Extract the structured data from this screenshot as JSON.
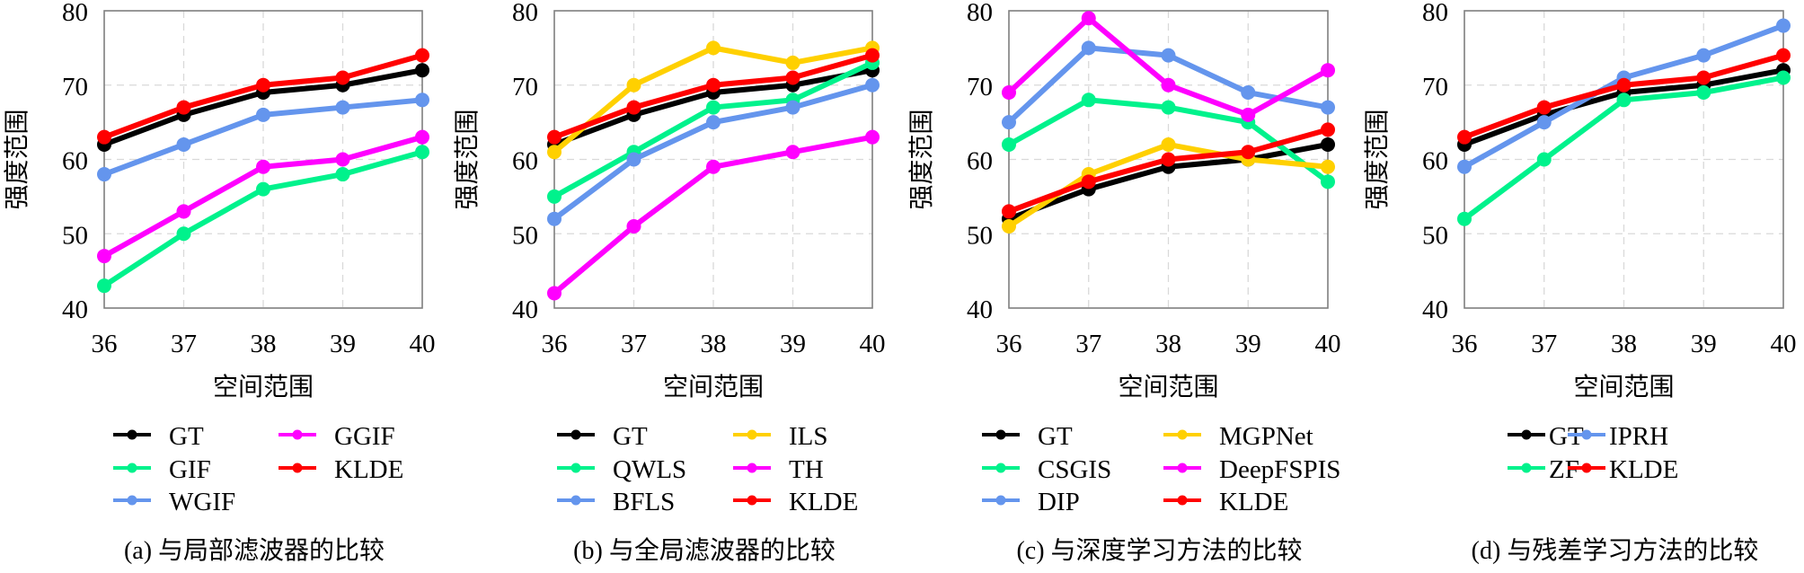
{
  "chart_data": [
    {
      "type": "line",
      "title": "",
      "caption": "(a) 与局部滤波器的比较",
      "xlabel": "空间范围",
      "ylabel": "强度范围",
      "x": [
        36,
        37,
        38,
        39,
        40
      ],
      "xticks": [
        "36",
        "37",
        "38",
        "39",
        "40"
      ],
      "yticks": [
        "40",
        "50",
        "60",
        "70",
        "80"
      ],
      "ylim": [
        40,
        80
      ],
      "xlim": [
        36,
        40
      ],
      "grid": true,
      "legend_placement": "below",
      "legend_columns": 2,
      "series": [
        {
          "name": "GT",
          "color": "#000000",
          "values": [
            62,
            66,
            69,
            70,
            72
          ]
        },
        {
          "name": "GIF",
          "color": "#00F28C",
          "values": [
            43,
            50,
            56,
            58,
            61
          ]
        },
        {
          "name": "WGIF",
          "color": "#6495ED",
          "values": [
            58,
            62,
            66,
            67,
            68
          ]
        },
        {
          "name": "GGIF",
          "color": "#FF00FF",
          "values": [
            47,
            53,
            59,
            60,
            63
          ]
        },
        {
          "name": "KLDE",
          "color": "#FF0000",
          "values": [
            63,
            67,
            70,
            71,
            74
          ]
        }
      ]
    },
    {
      "type": "line",
      "title": "",
      "caption": "(b) 与全局滤波器的比较",
      "xlabel": "空间范围",
      "ylabel": "强度范围",
      "x": [
        36,
        37,
        38,
        39,
        40
      ],
      "xticks": [
        "36",
        "37",
        "38",
        "39",
        "40"
      ],
      "yticks": [
        "40",
        "50",
        "60",
        "70",
        "80"
      ],
      "ylim": [
        40,
        80
      ],
      "xlim": [
        36,
        40
      ],
      "grid": true,
      "legend_placement": "below",
      "legend_columns": 2,
      "series": [
        {
          "name": "GT",
          "color": "#000000",
          "values": [
            62,
            66,
            69,
            70,
            72
          ]
        },
        {
          "name": "QWLS",
          "color": "#00F28C",
          "values": [
            55,
            61,
            67,
            68,
            73
          ]
        },
        {
          "name": "BFLS",
          "color": "#6495ED",
          "values": [
            52,
            60,
            65,
            67,
            70
          ]
        },
        {
          "name": "ILS",
          "color": "#FFD000",
          "values": [
            61,
            70,
            75,
            73,
            75
          ]
        },
        {
          "name": "TH",
          "color": "#FF00FF",
          "values": [
            42,
            51,
            59,
            61,
            63
          ]
        },
        {
          "name": "KLDE",
          "color": "#FF0000",
          "values": [
            63,
            67,
            70,
            71,
            74
          ]
        }
      ]
    },
    {
      "type": "line",
      "title": "",
      "caption": "(c) 与深度学习方法的比较",
      "xlabel": "空间范围",
      "ylabel": "强度范围",
      "x": [
        36,
        37,
        38,
        39,
        40
      ],
      "xticks": [
        "36",
        "37",
        "38",
        "39",
        "40"
      ],
      "yticks": [
        "40",
        "50",
        "60",
        "70",
        "80"
      ],
      "ylim": [
        40,
        80
      ],
      "xlim": [
        36,
        40
      ],
      "grid": true,
      "legend_placement": "below",
      "legend_columns": 2,
      "series": [
        {
          "name": "GT",
          "color": "#000000",
          "values": [
            52,
            56,
            59,
            60,
            62
          ]
        },
        {
          "name": "CSGIS",
          "color": "#00F28C",
          "values": [
            62,
            68,
            67,
            65,
            57
          ]
        },
        {
          "name": "DIP",
          "color": "#6495ED",
          "values": [
            65,
            75,
            74,
            69,
            67
          ]
        },
        {
          "name": "MGPNet",
          "color": "#FFD000",
          "values": [
            51,
            58,
            62,
            60,
            59
          ]
        },
        {
          "name": "DeepFSPIS",
          "color": "#FF00FF",
          "values": [
            69,
            79,
            70,
            66,
            72
          ]
        },
        {
          "name": "KLDE",
          "color": "#FF0000",
          "values": [
            53,
            57,
            60,
            61,
            64
          ]
        }
      ]
    },
    {
      "type": "line",
      "title": "",
      "caption": "(d) 与残差学习方法的比较",
      "xlabel": "空间范围",
      "ylabel": "强度范围",
      "x": [
        36,
        37,
        38,
        39,
        40
      ],
      "xticks": [
        "36",
        "37",
        "38",
        "39",
        "40"
      ],
      "yticks": [
        "40",
        "50",
        "60",
        "70",
        "80"
      ],
      "ylim": [
        40,
        80
      ],
      "xlim": [
        36,
        40
      ],
      "grid": true,
      "legend_placement": "below",
      "legend_columns": 2,
      "series": [
        {
          "name": "GT",
          "color": "#000000",
          "values": [
            62,
            66,
            69,
            70,
            72
          ]
        },
        {
          "name": "ZF",
          "color": "#00F28C",
          "values": [
            52,
            60,
            68,
            69,
            71
          ]
        },
        {
          "name": "IPRH",
          "color": "#6495ED",
          "values": [
            59,
            65,
            71,
            74,
            78
          ]
        },
        {
          "name": "KLDE",
          "color": "#FF0000",
          "values": [
            63,
            67,
            70,
            71,
            74
          ]
        }
      ]
    }
  ]
}
